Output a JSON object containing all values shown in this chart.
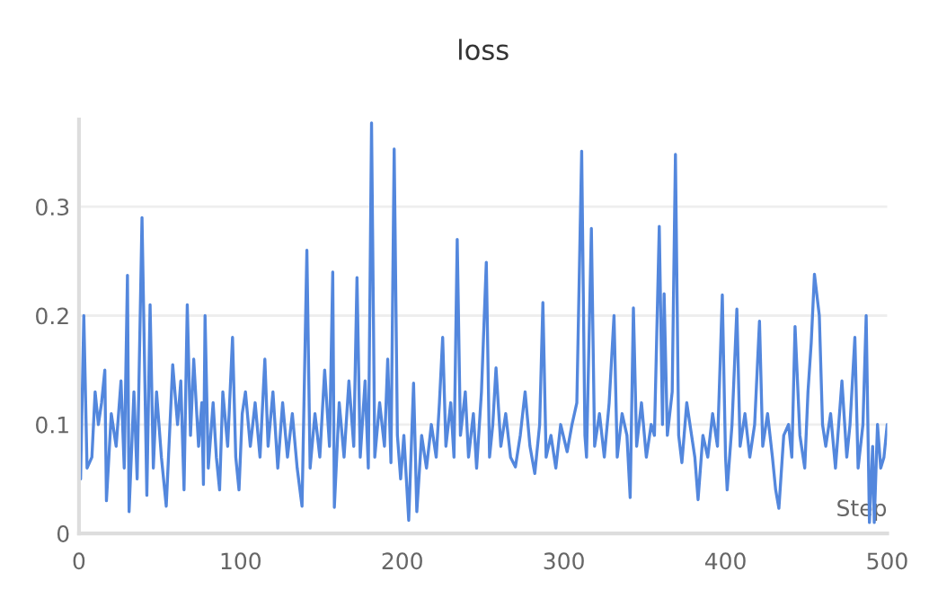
{
  "chart_data": {
    "type": "line",
    "title": "loss",
    "xlabel": "Step",
    "x": [
      0,
      1,
      3,
      5,
      8,
      10,
      12,
      14,
      16,
      17,
      20,
      23,
      26,
      28,
      30,
      31,
      34,
      36,
      39,
      42,
      44,
      46,
      48,
      51,
      54,
      58,
      61,
      63,
      65,
      67,
      69,
      71,
      74,
      76,
      77,
      78,
      80,
      83,
      85,
      87,
      89,
      92,
      95,
      97,
      99,
      101,
      103,
      106,
      109,
      112,
      115,
      117,
      120,
      123,
      126,
      129,
      132,
      135,
      138,
      141,
      143,
      146,
      149,
      152,
      155,
      157,
      158,
      161,
      164,
      167,
      170,
      172,
      174,
      177,
      179,
      181,
      183,
      186,
      189,
      191,
      193,
      195,
      197,
      199,
      201,
      204,
      207,
      209,
      212,
      215,
      218,
      221,
      223,
      225,
      227,
      230,
      232,
      234,
      236,
      239,
      241,
      244,
      246,
      249,
      252,
      254,
      256,
      258,
      261,
      264,
      267,
      270,
      273,
      276,
      279,
      282,
      285,
      287,
      289,
      292,
      295,
      298,
      302,
      305,
      308,
      311,
      313,
      314,
      317,
      319,
      322,
      325,
      328,
      331,
      333,
      336,
      339,
      341,
      343,
      345,
      348,
      351,
      354,
      356,
      359,
      361,
      362,
      364,
      367,
      369,
      371,
      373,
      376,
      379,
      381,
      383,
      386,
      389,
      392,
      395,
      398,
      400,
      401,
      404,
      407,
      409,
      412,
      415,
      418,
      421,
      423,
      426,
      429,
      431,
      433,
      436,
      439,
      441,
      443,
      446,
      449,
      451,
      453,
      455,
      458,
      460,
      462,
      465,
      468,
      470,
      472,
      475,
      477,
      480,
      482,
      485,
      487,
      489,
      491,
      492,
      494,
      496,
      498,
      500
    ],
    "series": [
      {
        "color": "#5387dd",
        "values": [
          0.15,
          0.05,
          0.2,
          0.06,
          0.07,
          0.13,
          0.1,
          0.12,
          0.15,
          0.03,
          0.11,
          0.08,
          0.14,
          0.06,
          0.237,
          0.02,
          0.13,
          0.05,
          0.29,
          0.035,
          0.21,
          0.06,
          0.13,
          0.07,
          0.025,
          0.155,
          0.1,
          0.14,
          0.04,
          0.21,
          0.09,
          0.16,
          0.08,
          0.12,
          0.045,
          0.2,
          0.06,
          0.12,
          0.07,
          0.04,
          0.13,
          0.08,
          0.18,
          0.07,
          0.04,
          0.11,
          0.13,
          0.08,
          0.12,
          0.07,
          0.16,
          0.08,
          0.13,
          0.06,
          0.12,
          0.07,
          0.11,
          0.06,
          0.025,
          0.26,
          0.06,
          0.11,
          0.07,
          0.15,
          0.08,
          0.24,
          0.024,
          0.12,
          0.07,
          0.14,
          0.08,
          0.235,
          0.07,
          0.14,
          0.06,
          0.377,
          0.07,
          0.12,
          0.08,
          0.16,
          0.065,
          0.353,
          0.09,
          0.05,
          0.09,
          0.012,
          0.138,
          0.02,
          0.09,
          0.06,
          0.1,
          0.07,
          0.12,
          0.18,
          0.08,
          0.12,
          0.07,
          0.27,
          0.09,
          0.13,
          0.07,
          0.11,
          0.06,
          0.13,
          0.249,
          0.07,
          0.1,
          0.152,
          0.08,
          0.11,
          0.07,
          0.061,
          0.09,
          0.13,
          0.08,
          0.055,
          0.1,
          0.212,
          0.07,
          0.09,
          0.06,
          0.1,
          0.075,
          0.1,
          0.12,
          0.351,
          0.09,
          0.07,
          0.28,
          0.08,
          0.11,
          0.07,
          0.12,
          0.2,
          0.07,
          0.11,
          0.09,
          0.033,
          0.207,
          0.08,
          0.12,
          0.07,
          0.1,
          0.09,
          0.282,
          0.1,
          0.22,
          0.09,
          0.13,
          0.348,
          0.09,
          0.065,
          0.12,
          0.09,
          0.07,
          0.031,
          0.09,
          0.07,
          0.11,
          0.08,
          0.219,
          0.07,
          0.04,
          0.1,
          0.206,
          0.08,
          0.11,
          0.07,
          0.1,
          0.195,
          0.08,
          0.11,
          0.07,
          0.04,
          0.023,
          0.09,
          0.1,
          0.07,
          0.19,
          0.09,
          0.06,
          0.13,
          0.175,
          0.238,
          0.2,
          0.1,
          0.08,
          0.11,
          0.06,
          0.1,
          0.14,
          0.07,
          0.1,
          0.18,
          0.06,
          0.1,
          0.2,
          0.01,
          0.08,
          0.01,
          0.1,
          0.06,
          0.07,
          0.1
        ]
      }
    ],
    "xlim": [
      0,
      500
    ],
    "xticks": [
      0,
      100,
      200,
      300,
      400,
      500
    ],
    "ylim": [
      0,
      0.38
    ],
    "yticks": [
      0,
      0.1,
      0.2,
      0.3
    ],
    "grid": "y",
    "marker": "none",
    "line_style": "solid"
  }
}
